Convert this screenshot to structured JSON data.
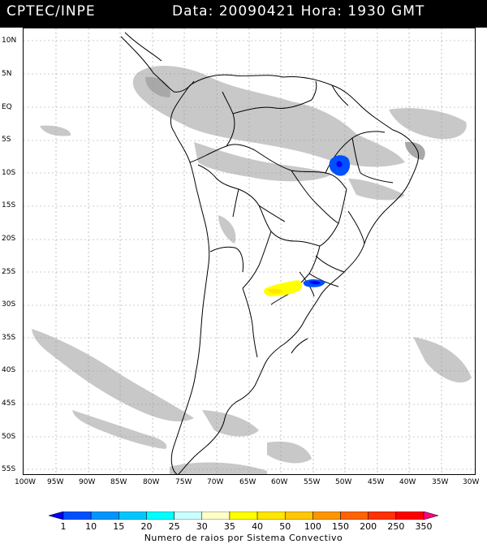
{
  "header": {
    "source": "CPTEC/INPE",
    "datetime": "Data: 20090421 Hora: 1930 GMT"
  },
  "axes": {
    "lat_labels": [
      "10N",
      "5N",
      "EQ",
      "5S",
      "10S",
      "15S",
      "20S",
      "25S",
      "30S",
      "35S",
      "40S",
      "45S",
      "50S",
      "55S"
    ],
    "lon_labels": [
      "100W",
      "95W",
      "90W",
      "85W",
      "80W",
      "75W",
      "70W",
      "65W",
      "60W",
      "55W",
      "50W",
      "45W",
      "40W",
      "35W",
      "30W"
    ]
  },
  "legend": {
    "title": "Numero de raios por Sistema Convectivo",
    "labels": [
      "1",
      "10",
      "15",
      "20",
      "25",
      "30",
      "35",
      "40",
      "50",
      "100",
      "150",
      "200",
      "250",
      "350"
    ],
    "colors": [
      "#0000ff",
      "#0050ff",
      "#0096ff",
      "#00c8ff",
      "#00ffff",
      "#ccffff",
      "#ffffcc",
      "#ffff00",
      "#ffe600",
      "#ffc800",
      "#ff9600",
      "#ff6400",
      "#ff3200",
      "#ff0000",
      "#ff0080"
    ]
  },
  "colors": {
    "cloud": "#c8c8c8",
    "cloud_dark": "#a8a8a8",
    "border": "#000000",
    "grid": "#999999"
  }
}
